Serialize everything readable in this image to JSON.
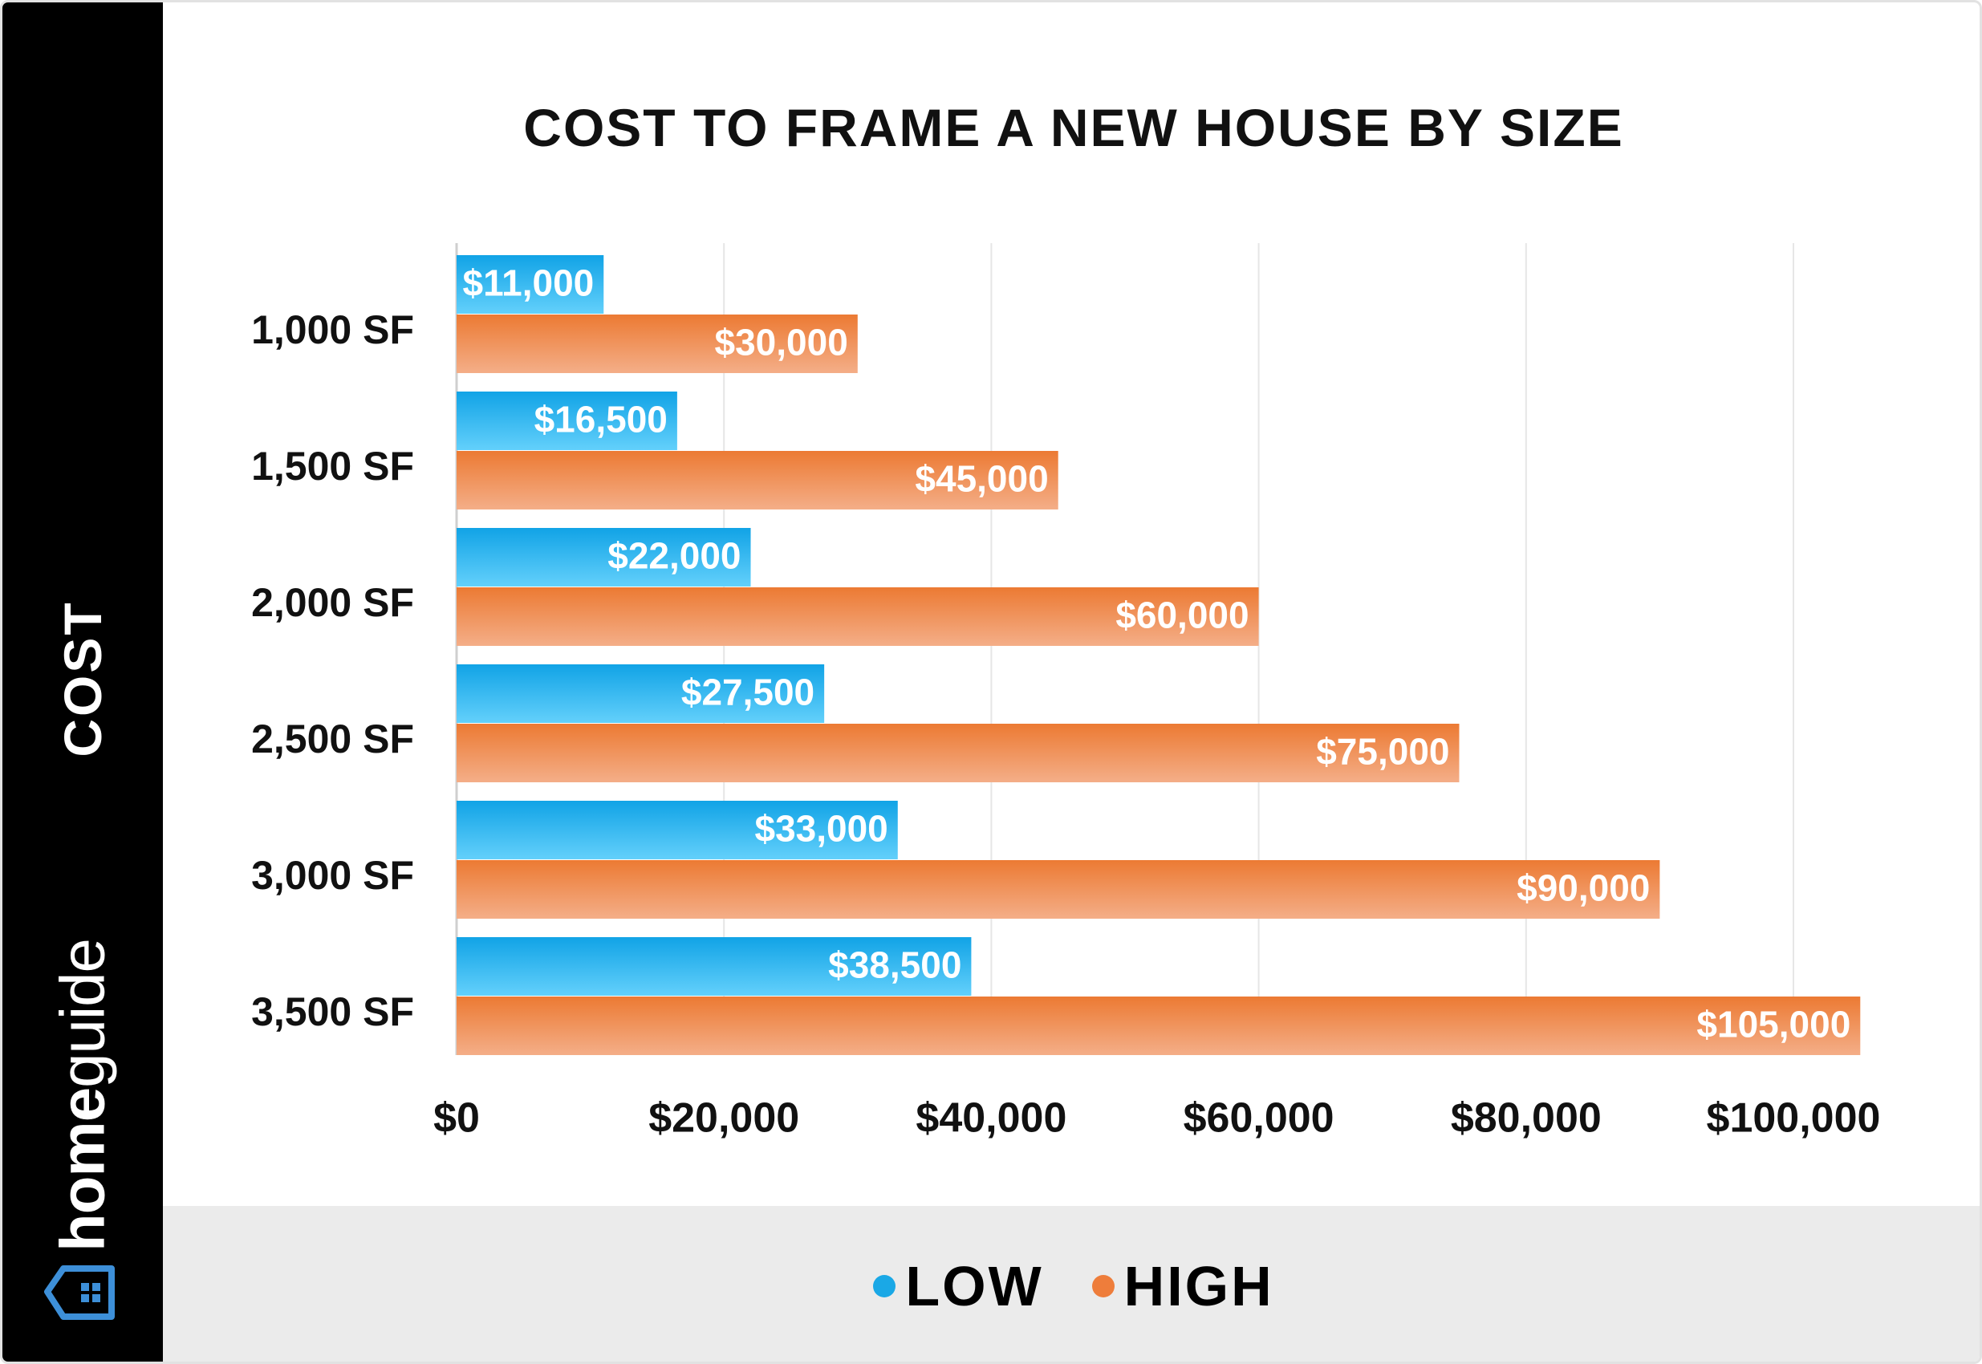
{
  "sidebar": {
    "label": "COST",
    "brand_part1": "home",
    "brand_part2": "guide",
    "brand_icon": "house-icon"
  },
  "legend": {
    "items": [
      {
        "label": "LOW",
        "color": "#1aa8e6"
      },
      {
        "label": "HIGH",
        "color": "#ee7d3b"
      }
    ]
  },
  "chart_data": {
    "type": "bar",
    "orientation": "horizontal",
    "title": "COST TO FRAME A NEW HOUSE BY SIZE",
    "categories": [
      "1,000 SF",
      "1,500 SF",
      "2,000 SF",
      "2,500 SF",
      "3,000 SF",
      "3,500 SF"
    ],
    "series": [
      {
        "name": "LOW",
        "color": "#1aa8e6",
        "values": [
          11000,
          16500,
          22000,
          27500,
          33000,
          38500
        ],
        "labels": [
          "$11,000",
          "$16,500",
          "$22,000",
          "$27,500",
          "$33,000",
          "$38,500"
        ]
      },
      {
        "name": "HIGH",
        "color": "#ee7d3b",
        "values": [
          30000,
          45000,
          60000,
          75000,
          90000,
          105000
        ],
        "labels": [
          "$30,000",
          "$45,000",
          "$60,000",
          "$75,000",
          "$90,000",
          "$105,000"
        ]
      }
    ],
    "xlim": [
      0,
      100000
    ],
    "xticks": [
      0,
      20000,
      40000,
      60000,
      80000,
      100000
    ],
    "xtick_labels": [
      "$0",
      "$20,000",
      "$40,000",
      "$60,000",
      "$80,000",
      "$100,000"
    ],
    "xlabel": "",
    "ylabel": "COST",
    "grid": true,
    "legend_position": "bottom"
  }
}
